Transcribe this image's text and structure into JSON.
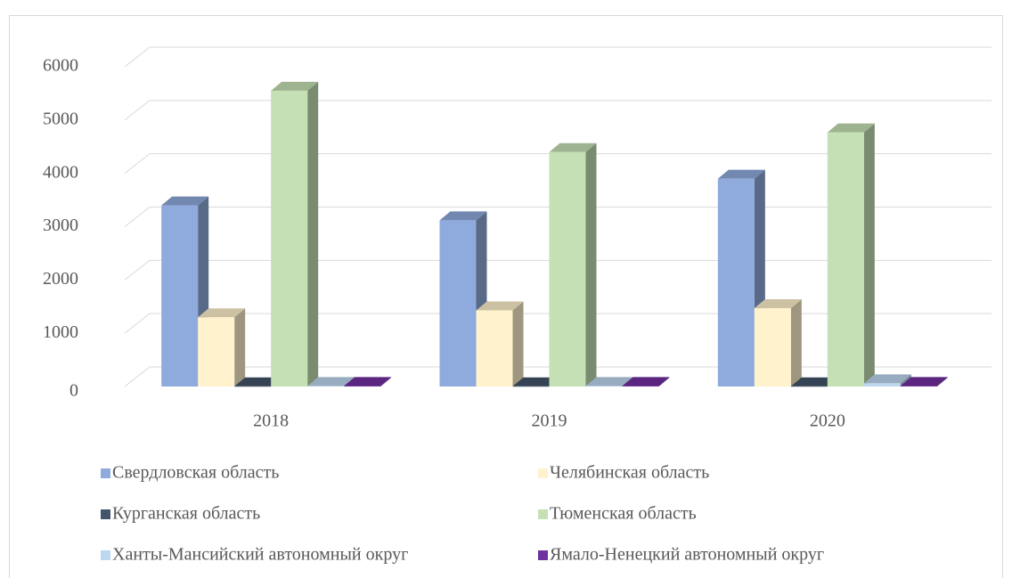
{
  "chart_data": {
    "type": "bar3d",
    "categories": [
      "2018",
      "2019",
      "2020"
    ],
    "series": [
      {
        "name": "Свердловская область",
        "color": "#8faadc",
        "values": [
          3400,
          3120,
          3900
        ]
      },
      {
        "name": "Челябинская область",
        "color": "#fff2cc",
        "values": [
          1300,
          1430,
          1470
        ]
      },
      {
        "name": "Курганская область",
        "color": "#44546a",
        "values": [
          5,
          5,
          5
        ]
      },
      {
        "name": "Тюменская область",
        "color": "#c5e0b4",
        "values": [
          5550,
          4400,
          4770
        ]
      },
      {
        "name": "Ханты-Мансийский автономный округ",
        "color": "#bdd7ee",
        "values": [
          10,
          10,
          60
        ]
      },
      {
        "name": "Ямало-Ненецкий автономный округ",
        "color": "#7030a0",
        "values": [
          10,
          10,
          10
        ]
      }
    ],
    "ylim": [
      0,
      6000
    ],
    "yticks": [
      0,
      1000,
      2000,
      3000,
      4000,
      5000,
      6000
    ],
    "grid": true,
    "legend": "bottom"
  }
}
